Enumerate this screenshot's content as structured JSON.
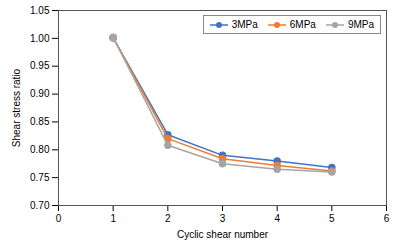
{
  "chart_data": {
    "type": "line",
    "x": [
      1,
      2,
      3,
      4,
      5
    ],
    "series": [
      {
        "name": "3MPa",
        "color": "#4472C4",
        "marker": "circle",
        "values": [
          1.001,
          0.827,
          0.79,
          0.78,
          0.768
        ]
      },
      {
        "name": "6MPa",
        "color": "#ED7D31",
        "marker": "circle",
        "values": [
          1.001,
          0.82,
          0.784,
          0.772,
          0.762
        ]
      },
      {
        "name": "9MPa",
        "color": "#A5A5A5",
        "marker": "circle",
        "values": [
          1.002,
          0.808,
          0.775,
          0.765,
          0.76
        ]
      }
    ],
    "xlabel": "Cyclic shear number",
    "ylabel": "Shear stress ratio",
    "xlim": [
      0,
      6
    ],
    "ylim": [
      0.7,
      1.05
    ],
    "xticks": [
      0,
      1,
      2,
      3,
      4,
      5,
      6
    ],
    "yticks": [
      {
        "value": 0.7,
        "label": "0.70"
      },
      {
        "value": 0.75,
        "label": "0.75"
      },
      {
        "value": 0.8,
        "label": "0.80"
      },
      {
        "value": 0.85,
        "label": "0.85"
      },
      {
        "value": 0.9,
        "label": "0.90"
      },
      {
        "value": 0.95,
        "label": "0.95"
      },
      {
        "value": 1.0,
        "label": "1.00"
      },
      {
        "value": 1.05,
        "label": "1.05"
      }
    ],
    "legend": "upper right",
    "grid": false
  }
}
